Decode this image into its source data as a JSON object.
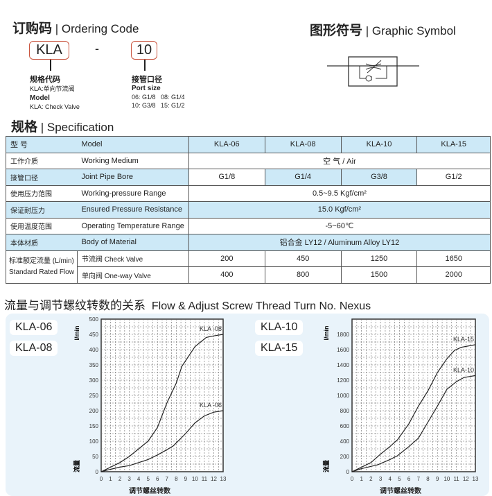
{
  "ordering": {
    "title_zh": "订购码",
    "title_en": "Ordering Code",
    "model_code": "KLA",
    "dash": "-",
    "port_code": "10",
    "model_label_zh": "规格代码",
    "model_desc_zh": "KLA:单向节流阀",
    "model_label_en": "Model",
    "model_desc_en": "KLA: Check Valve",
    "port_label_zh": "接管口径",
    "port_label_en": "Port size",
    "port_line1": "06: G1/8   08: G1/4",
    "port_line2": "10: G3/8   15: G1/2"
  },
  "symbol": {
    "title_zh": "图形符号",
    "title_en": "Graphic Symbol"
  },
  "spec": {
    "title_zh": "规格",
    "title_en": "Specification",
    "header": {
      "zh": "型 号",
      "en": "Model",
      "models": [
        "KLA-06",
        "KLA-08",
        "KLA-10",
        "KLA-15"
      ]
    },
    "rows": [
      {
        "zh": "工作介质",
        "en": "Working Medium",
        "value": "空 气 / Air"
      },
      {
        "zh": "接管口径",
        "en": "Joint Pipe Bore",
        "values": [
          "G1/8",
          "G1/4",
          "G3/8",
          "G1/2"
        ]
      },
      {
        "zh": "使用压力范围",
        "en": "Working-pressure Range",
        "value": "0.5~9.5 Kgf/cm²"
      },
      {
        "zh": "保证耐压力",
        "en": "Ensured Pressure Resistance",
        "value": "15.0 Kgf/cm²"
      },
      {
        "zh": "使用温度范围",
        "en": "Operating Temperature Range",
        "value": "-5~60℃"
      },
      {
        "zh": "本体材质",
        "en": "Body of Material",
        "value": "铝合金 LY12 /  Aluminum Alloy LY12"
      }
    ],
    "flow": {
      "zh": "标准额定流量 (L/min)",
      "en": "Standard Rated Flow",
      "check": {
        "label": "节流阀 Check Valve",
        "values": [
          "200",
          "450",
          "1250",
          "1650"
        ]
      },
      "oneway": {
        "label": "单向阀 One-way Valve",
        "values": [
          "400",
          "800",
          "1500",
          "2000"
        ]
      }
    }
  },
  "flow_section": {
    "title_zh": "流量与调节螺纹转数的关系",
    "title_en": "Flow &  Adjust Screw Thread Turn No. Nexus",
    "left_tags": [
      "KLA-06",
      "KLA-08"
    ],
    "right_tags": [
      "KLA-10",
      "KLA-15"
    ]
  },
  "chart_data": [
    {
      "type": "line",
      "ylabel_top": "l/min",
      "ylabel_bottom": "流量",
      "xlabel": "调节螺丝转数",
      "xlim": [
        0,
        13
      ],
      "ylim": [
        0,
        500
      ],
      "xticks": [
        0,
        1,
        2,
        3,
        4,
        5,
        6,
        7,
        8,
        9,
        10,
        11,
        12,
        13
      ],
      "yticks": [
        0,
        50,
        100,
        150,
        200,
        250,
        300,
        350,
        400,
        450,
        500
      ],
      "grid": true,
      "series": [
        {
          "name": "KLA -08",
          "x": [
            0,
            1,
            2,
            3,
            4,
            5,
            6,
            7,
            8,
            8.6,
            10,
            11.2,
            12,
            13
          ],
          "y": [
            0,
            15,
            30,
            50,
            75,
            100,
            145,
            225,
            290,
            345,
            410,
            440,
            445,
            450
          ]
        },
        {
          "name": "KLA -06",
          "x": [
            0,
            1,
            2,
            3,
            4,
            5,
            6,
            7,
            7.7,
            9,
            10,
            11,
            12,
            13
          ],
          "y": [
            0,
            8,
            15,
            20,
            30,
            40,
            55,
            72,
            85,
            125,
            160,
            183,
            195,
            200
          ]
        }
      ]
    },
    {
      "type": "line",
      "ylabel_top": "l/min",
      "ylabel_bottom": "流量",
      "xlabel": "调节螺丝转数",
      "xlim": [
        0,
        13
      ],
      "ylim": [
        0,
        2000
      ],
      "xticks": [
        0,
        1,
        2,
        3,
        4,
        5,
        6,
        7,
        8,
        9,
        10,
        11,
        12,
        13
      ],
      "yticks": [
        0,
        200,
        400,
        600,
        800,
        1000,
        1200,
        1400,
        1600,
        1800
      ],
      "grid": true,
      "series": [
        {
          "name": "KLA-15",
          "x": [
            0,
            1,
            2,
            3,
            4,
            4.8,
            6,
            7,
            8,
            9,
            10,
            10.8,
            11.5,
            13
          ],
          "y": [
            0,
            60,
            120,
            230,
            330,
            420,
            630,
            860,
            1060,
            1300,
            1480,
            1590,
            1630,
            1665
          ]
        },
        {
          "name": "KLA-10",
          "x": [
            0,
            1,
            2,
            2.7,
            4,
            4.8,
            6,
            7,
            8,
            9,
            10,
            11,
            11.8,
            13
          ],
          "y": [
            0,
            40,
            70,
            90,
            160,
            210,
            330,
            440,
            650,
            860,
            1080,
            1180,
            1235,
            1260
          ]
        }
      ]
    }
  ]
}
